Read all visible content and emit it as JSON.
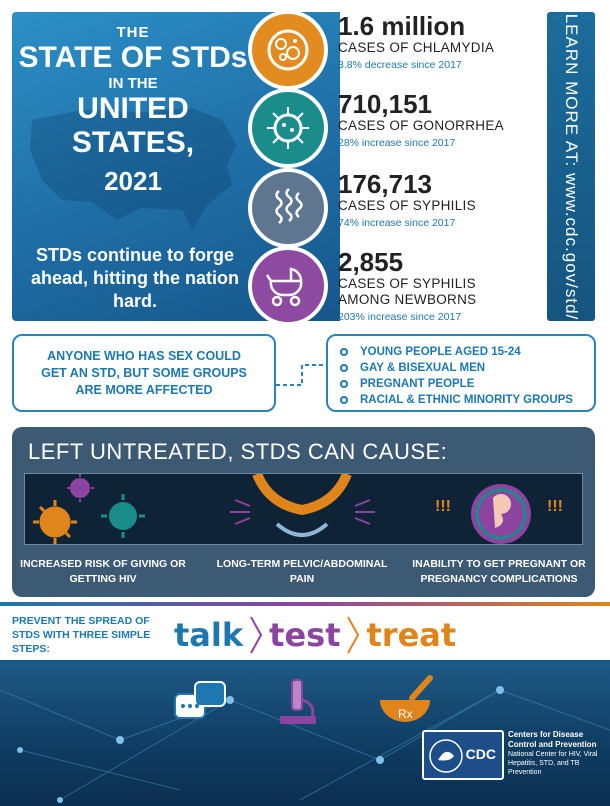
{
  "hero": {
    "title_the": "THE",
    "title_state": "STATE OF STDs",
    "title_in_the": "IN THE",
    "title_united_states": "UNITED STATES,",
    "title_year": "2021",
    "tagline": "STDs continue to forge ahead, hitting the nation hard."
  },
  "stats": [
    {
      "number": "1.6 million",
      "label": "CASES OF CHLAMYDIA",
      "change": "3.8% decrease since 2017",
      "color": "#e28b1f",
      "icon": "bacteria-cell-icon"
    },
    {
      "number": "710,151",
      "label": "CASES OF GONORRHEA",
      "change": "28% increase since 2017",
      "color": "#1a8c8a",
      "icon": "virus-cell-icon"
    },
    {
      "number": "176,713",
      "label": "CASES OF SYPHILIS",
      "change": "74% increase since 2017",
      "color": "#5e7690",
      "icon": "spiral-bacteria-icon"
    },
    {
      "number": "2,855",
      "label": "CASES OF SYPHILIS AMONG NEWBORNS",
      "change": "203% increase since 2017",
      "color": "#8d4aa0",
      "icon": "baby-stroller-icon"
    }
  ],
  "learn_more": "LEARN MORE AT: www.cdc.gov/std/",
  "groups": {
    "intro": "ANYONE WHO HAS SEX COULD GET AN STD, BUT SOME GROUPS ARE MORE AFFECTED",
    "items": [
      "YOUNG PEOPLE AGED 15-24",
      "GAY & BISEXUAL MEN",
      "PREGNANT PEOPLE",
      "RACIAL & ETHNIC MINORITY GROUPS"
    ]
  },
  "untreated": {
    "heading": "LEFT UNTREATED, STDS CAN CAUSE:",
    "effects": [
      "INCREASED RISK OF GIVING OR GETTING HIV",
      "LONG-TERM PELVIC/ABDOMINAL PAIN",
      "INABILITY TO GET PREGNANT OR PREGNANCY COMPLICATIONS"
    ],
    "exclaim": "!!!"
  },
  "prevent": {
    "text": "PREVENT THE SPREAD OF STDS WITH THREE SIMPLE STEPS:",
    "steps": [
      {
        "label": "talk",
        "color": "#1d78b0"
      },
      {
        "label": "test",
        "color": "#8c44a1"
      },
      {
        "label": "treat",
        "color": "#e0841c"
      }
    ]
  },
  "cdc": {
    "logo": "CDC",
    "org": "Centers for Disease Control and Prevention",
    "center": "National Center for HIV, Viral Hepatitis, STD, and TB Prevention"
  }
}
